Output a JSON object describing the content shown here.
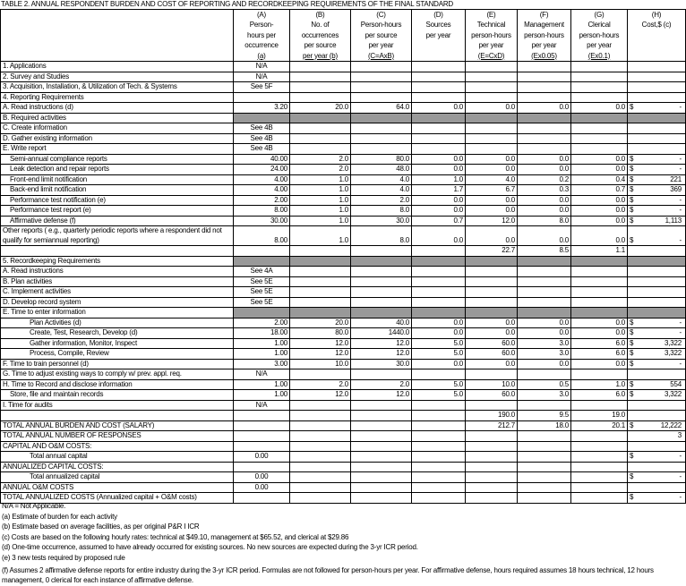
{
  "title": "TABLE 2.  ANNUAL RESPONDENT BURDEN AND COST OF REPORTING AND RECORDKEEPING REQUIREMENTS OF THE FINAL STANDARD",
  "columns": [
    {
      "letter": "(A)",
      "lines": [
        "Person-",
        "hours per",
        "occurrence"
      ],
      "formula": "(a)"
    },
    {
      "letter": "(B)",
      "lines": [
        "No. of",
        "occurrences",
        "per source"
      ],
      "formula": "per year (b)"
    },
    {
      "letter": "(C)",
      "lines": [
        "Person-hours",
        "per source",
        "per year"
      ],
      "formula": "(C=AxB)"
    },
    {
      "letter": "(D)",
      "lines": [
        "Sources",
        "per year",
        ""
      ],
      "formula": ""
    },
    {
      "letter": "(E)",
      "lines": [
        "Technical",
        "person-hours",
        "per year"
      ],
      "formula": "(E=CxD)"
    },
    {
      "letter": "(F)",
      "lines": [
        "Management",
        "person-hours",
        "per year"
      ],
      "formula": "(Ex0.05)"
    },
    {
      "letter": "(G)",
      "lines": [
        "Clerical",
        "person-hours",
        "per year"
      ],
      "formula": "(Ex0.1)"
    },
    {
      "letter": "(H)",
      "lines": [
        "Cost,$ (c)",
        "",
        ""
      ],
      "formula": ""
    }
  ],
  "currency_symbol": "$",
  "rows": [
    {
      "label": "1. Applications",
      "level": 0,
      "cells": [
        "N/A",
        "",
        "",
        "",
        "",
        "",
        "",
        ""
      ]
    },
    {
      "label": "2. Survey and Studies",
      "level": 0,
      "cells": [
        "N/A",
        "",
        "",
        "",
        "",
        "",
        "",
        ""
      ]
    },
    {
      "label": "3. Acquisition, Installation, & Utilization of Tech. & Systems",
      "level": 0,
      "cells": [
        "See 5F",
        "",
        "",
        "",
        "",
        "",
        "",
        ""
      ]
    },
    {
      "label": "4. Reporting Requirements",
      "level": 0,
      "cells": [
        "",
        "",
        "",
        "",
        "",
        "",
        "",
        ""
      ]
    },
    {
      "label": "A. Read instructions  (d)",
      "level": 0,
      "cells": [
        "3.20",
        "20.0",
        "64.0",
        "0.0",
        "0.0",
        "0.0",
        "0.0",
        "-"
      ],
      "dollar": true
    },
    {
      "label": "B. Required activities",
      "level": 0,
      "shaded": true,
      "cells": [
        "",
        "",
        "",
        "",
        "",
        "",
        "",
        ""
      ]
    },
    {
      "label": "C. Create information",
      "level": 0,
      "cells": [
        "See 4B",
        "",
        "",
        "",
        "",
        "",
        "",
        ""
      ]
    },
    {
      "label": "D. Gather existing information",
      "level": 0,
      "cells": [
        "See 4B",
        "",
        "",
        "",
        "",
        "",
        "",
        ""
      ]
    },
    {
      "label": "E. Write report",
      "level": 0,
      "cells": [
        "See 4B",
        "",
        "",
        "",
        "",
        "",
        "",
        ""
      ]
    },
    {
      "label": "Semi-annual compliance reports",
      "level": 1,
      "cells": [
        "40.00",
        "2.0",
        "80.0",
        "0.0",
        "0.0",
        "0.0",
        "0.0",
        "-"
      ],
      "dollar": true
    },
    {
      "label": "Leak detection and repair reports",
      "level": 1,
      "cells": [
        "24.00",
        "2.0",
        "48.0",
        "0.0",
        "0.0",
        "0.0",
        "0.0",
        "-"
      ],
      "dollar": true
    },
    {
      "label": "Front-end limit notification",
      "level": 1,
      "cells": [
        "4.00",
        "1.0",
        "4.0",
        "1.0",
        "4.0",
        "0.2",
        "0.4",
        "221"
      ],
      "dollar": true
    },
    {
      "label": "Back-end limit notification",
      "level": 1,
      "cells": [
        "4.00",
        "1.0",
        "4.0",
        "1.7",
        "6.7",
        "0.3",
        "0.7",
        "369"
      ],
      "dollar": true
    },
    {
      "label": "Performance test notification (e)",
      "level": 1,
      "cells": [
        "2.00",
        "1.0",
        "2.0",
        "0.0",
        "0.0",
        "0.0",
        "0.0",
        "-"
      ],
      "dollar": true
    },
    {
      "label": "Performance test report (e)",
      "level": 1,
      "cells": [
        "8.00",
        "1.0",
        "8.0",
        "0.0",
        "0.0",
        "0.0",
        "0.0",
        "-"
      ],
      "dollar": true
    },
    {
      "label": "Affirmative defense (f)",
      "level": 1,
      "cells": [
        "30.00",
        "1.0",
        "30.0",
        "0.7",
        "12.0",
        "8.0",
        "0.0",
        "1,113"
      ],
      "dollar": true
    },
    {
      "label": "   Other reports ( e.g., quarterly periodic reports where a respondent did not qualify for semiannual reporting)",
      "level": 0,
      "tall": true,
      "cells": [
        "8.00",
        "1.0",
        "8.0",
        "0.0",
        "0.0",
        "0.0",
        "0.0",
        "-"
      ],
      "dollar": true
    },
    {
      "label": "",
      "level": 0,
      "cells": [
        "",
        "",
        "",
        "",
        "22.7",
        "8.5",
        "1.1",
        ""
      ]
    },
    {
      "label": "5.  Recordkeeping Requirements",
      "level": 0,
      "shaded": true,
      "cells": [
        "",
        "",
        "",
        "",
        "",
        "",
        "",
        ""
      ]
    },
    {
      "label": "A. Read instructions",
      "level": 0,
      "cells": [
        "See 4A",
        "",
        "",
        "",
        "",
        "",
        "",
        ""
      ]
    },
    {
      "label": "B.  Plan activities",
      "level": 0,
      "cells": [
        "See 5E",
        "",
        "",
        "",
        "",
        "",
        "",
        ""
      ]
    },
    {
      "label": "C.  Implement activities",
      "level": 0,
      "cells": [
        "See 5E",
        "",
        "",
        "",
        "",
        "",
        "",
        ""
      ]
    },
    {
      "label": "D.  Develop record system",
      "level": 0,
      "cells": [
        "See 5E",
        "",
        "",
        "",
        "",
        "",
        "",
        ""
      ]
    },
    {
      "label": "E.  Time to enter information",
      "level": 0,
      "shaded": true,
      "cells": [
        "",
        "",
        "",
        "",
        "",
        "",
        "",
        ""
      ]
    },
    {
      "label": "Plan Activities (d)",
      "level": 2,
      "cells": [
        "2.00",
        "20.0",
        "40.0",
        "0.0",
        "0.0",
        "0.0",
        "0.0",
        "-"
      ],
      "dollar": true
    },
    {
      "label": "Create, Test, Research, Develop (d)",
      "level": 2,
      "cells": [
        "18.00",
        "80.0",
        "1440.0",
        "0.0",
        "0.0",
        "0.0",
        "0.0",
        "-"
      ],
      "dollar": true
    },
    {
      "label": "Gather information, Monitor, Inspect",
      "level": 2,
      "cells": [
        "1.00",
        "12.0",
        "12.0",
        "5.0",
        "60.0",
        "3.0",
        "6.0",
        "3,322"
      ],
      "dollar": true
    },
    {
      "label": "Process, Compile, Review",
      "level": 2,
      "cells": [
        "1.00",
        "12.0",
        "12.0",
        "5.0",
        "60.0",
        "3.0",
        "6.0",
        "3,322"
      ],
      "dollar": true
    },
    {
      "label": "F.  Time to train personnel (d)",
      "level": 0,
      "cells": [
        "3.00",
        "10.0",
        "30.0",
        "0.0",
        "0.0",
        "0.0",
        "0.0",
        "-"
      ],
      "dollar": true
    },
    {
      "label": "G.  Time to adjust existing ways to comply w/ prev. appl. req.",
      "level": 0,
      "cells": [
        "N/A",
        "",
        "",
        "",
        "",
        "",
        "",
        ""
      ]
    },
    {
      "label": "H.  Time to Record and disclose information",
      "level": 0,
      "cells": [
        "1.00",
        "2.0",
        "2.0",
        "5.0",
        "10.0",
        "0.5",
        "1.0",
        "554"
      ],
      "dollar": true
    },
    {
      "label": "Store, file and maintain records",
      "level": 1,
      "cells": [
        "1.00",
        "12.0",
        "12.0",
        "5.0",
        "60.0",
        "3.0",
        "6.0",
        "3,322"
      ],
      "dollar": true
    },
    {
      "label": "I.  Time for audits",
      "level": 0,
      "cells": [
        "N/A",
        "",
        "",
        "",
        "",
        "",
        "",
        ""
      ]
    },
    {
      "label": "",
      "level": 0,
      "cells": [
        "",
        "",
        "",
        "",
        "190.0",
        "9.5",
        "19.0",
        ""
      ]
    },
    {
      "label": "TOTAL ANNUAL BURDEN AND COST (SALARY)",
      "level": 0,
      "cells": [
        "",
        "",
        "",
        "",
        "212.7",
        "18.0",
        "20.1",
        "12,222"
      ],
      "dollar": true
    },
    {
      "label": "TOTAL ANNUAL NUMBER OF RESPONSES",
      "level": 0,
      "cells": [
        "",
        "",
        "",
        "",
        "",
        "",
        "",
        "3"
      ]
    },
    {
      "label": "CAPITAL AND O&M COSTS:",
      "level": 0,
      "cells": [
        "",
        "",
        "",
        "",
        "",
        "",
        "",
        ""
      ]
    },
    {
      "label": "Total annual capital",
      "level": 2,
      "cells": [
        "0.00",
        "",
        "",
        "",
        "",
        "",
        "",
        "-"
      ],
      "dollar": true
    },
    {
      "label": "ANNUALIZED CAPITAL COSTS:",
      "level": 0,
      "cells": [
        "",
        "",
        "",
        "",
        "",
        "",
        "",
        ""
      ]
    },
    {
      "label": "Total annualized capital",
      "level": 2,
      "cells": [
        "0.00",
        "",
        "",
        "",
        "",
        "",
        "",
        "-"
      ],
      "dollar": true
    },
    {
      "label": "ANNUAL O&M COSTS",
      "level": 0,
      "cells": [
        "0.00",
        "",
        "",
        "",
        "",
        "",
        "",
        ""
      ]
    },
    {
      "label": "TOTAL ANNUALIZED COSTS (Annualized capital + O&M costs)",
      "level": 0,
      "cells": [
        "",
        "",
        "",
        "",
        "",
        "",
        "",
        "-"
      ],
      "dollar": true
    }
  ],
  "notes": [
    "N/A = Not Applicable.",
    "(a) Estimate of burden for each activity",
    "(b) Estimate based on average facilities, as per original P&R I ICR",
    "(c) Costs are based on the following hourly rates:  technical at $49.10, management at $65.52, and clerical at $29.86",
    "(d) One-time occurrence, assumed to have already occurred for existing sources.  No new sources are expected during the 3-yr ICR period.",
    "(e) 3 new tests required by proposed rule",
    "(f)  Assumes 2 affirmative defense reports for entire industry during the 3-yr ICR period.  Formulas are not followed for person-hours per year.  For affirmative defense, hours required assumes 18 hours technical, 12 hours management, 0 clerical for each instance of affirmative defense."
  ]
}
